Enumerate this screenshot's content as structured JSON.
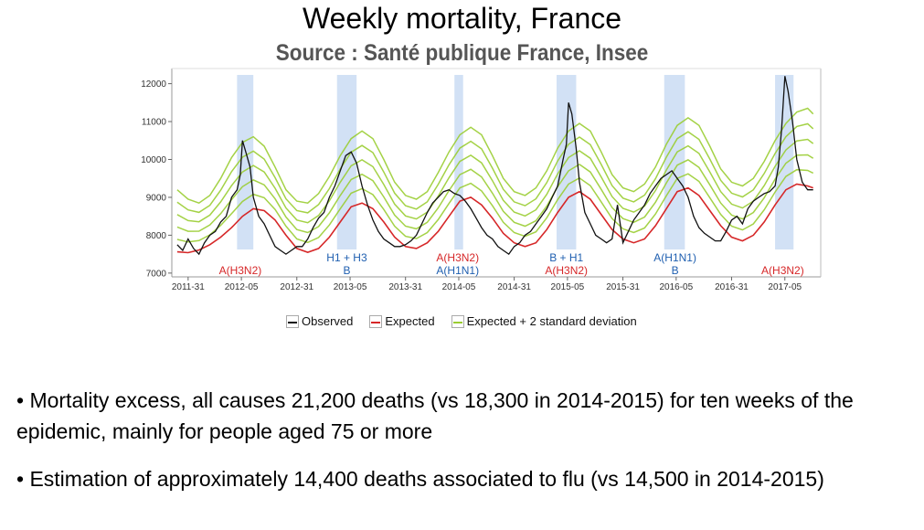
{
  "title": "Weekly mortality, France",
  "subtitle": "Source : Santé publique France, Insee",
  "chart_data": {
    "type": "line",
    "ylim": [
      6900,
      12400
    ],
    "yticks": [
      7000,
      8000,
      9000,
      10000,
      11000,
      12000
    ],
    "ytick_labels": [
      "7000",
      "8000",
      "9000",
      "10000",
      "11000",
      "12000"
    ],
    "xlim": [
      2011.45,
      2017.42
    ],
    "xticks": [
      2011.6,
      2012.09,
      2012.6,
      2013.09,
      2013.6,
      2014.09,
      2014.6,
      2015.09,
      2015.6,
      2016.09,
      2016.6,
      2017.09
    ],
    "xtick_labels": [
      "2011-31",
      "2012-05",
      "2012-31",
      "2013-05",
      "2013-31",
      "2014-05",
      "2014-31",
      "2015-05",
      "2015-31",
      "2016-05",
      "2016-31",
      "2017-05"
    ],
    "grid": false,
    "legend_position": "bottom",
    "series": [
      {
        "name": "Observed",
        "color": "#111111",
        "x": [
          2011.5,
          2011.55,
          2011.6,
          2011.65,
          2011.7,
          2011.75,
          2011.8,
          2011.85,
          2011.9,
          2011.95,
          2012.0,
          2012.05,
          2012.08,
          2012.1,
          2012.13,
          2012.17,
          2012.2,
          2012.25,
          2012.3,
          2012.35,
          2012.4,
          2012.45,
          2012.5,
          2012.55,
          2012.6,
          2012.65,
          2012.7,
          2012.75,
          2012.8,
          2012.85,
          2012.9,
          2012.95,
          2013.0,
          2013.05,
          2013.1,
          2013.15,
          2013.2,
          2013.25,
          2013.3,
          2013.35,
          2013.4,
          2013.45,
          2013.5,
          2013.55,
          2013.6,
          2013.65,
          2013.7,
          2013.75,
          2013.8,
          2013.85,
          2013.9,
          2013.95,
          2014.0,
          2014.05,
          2014.1,
          2014.15,
          2014.2,
          2014.25,
          2014.3,
          2014.35,
          2014.4,
          2014.45,
          2014.5,
          2014.55,
          2014.6,
          2014.65,
          2014.7,
          2014.75,
          2014.8,
          2014.85,
          2014.9,
          2014.95,
          2015.0,
          2015.05,
          2015.08,
          2015.1,
          2015.13,
          2015.17,
          2015.2,
          2015.25,
          2015.3,
          2015.35,
          2015.4,
          2015.45,
          2015.5,
          2015.55,
          2015.6,
          2015.65,
          2015.7,
          2015.75,
          2015.8,
          2015.85,
          2015.9,
          2015.95,
          2016.0,
          2016.05,
          2016.1,
          2016.15,
          2016.2,
          2016.25,
          2016.3,
          2016.35,
          2016.4,
          2016.45,
          2016.5,
          2016.55,
          2016.6,
          2016.65,
          2016.7,
          2016.75,
          2016.8,
          2016.85,
          2016.9,
          2016.95,
          2017.0,
          2017.03,
          2017.06,
          2017.09,
          2017.12,
          2017.16,
          2017.2,
          2017.25,
          2017.3,
          2017.35
        ],
        "values": [
          7750,
          7600,
          7900,
          7650,
          7500,
          7800,
          8000,
          8100,
          8350,
          8500,
          9000,
          9200,
          9600,
          10500,
          10200,
          9800,
          9000,
          8500,
          8300,
          8000,
          7700,
          7600,
          7500,
          7600,
          7700,
          7700,
          7900,
          8200,
          8450,
          8600,
          9000,
          9300,
          9700,
          10100,
          10200,
          9900,
          9300,
          8800,
          8400,
          8100,
          7900,
          7800,
          7700,
          7700,
          7750,
          7850,
          8000,
          8300,
          8600,
          8850,
          9000,
          9150,
          9200,
          9100,
          9050,
          8900,
          8700,
          8450,
          8200,
          8000,
          7900,
          7700,
          7600,
          7500,
          7700,
          7800,
          8000,
          8100,
          8300,
          8500,
          8700,
          9000,
          9300,
          10000,
          10400,
          11500,
          11200,
          10300,
          9400,
          8600,
          8300,
          8000,
          7900,
          7800,
          7900,
          8800,
          7800,
          8100,
          8400,
          8600,
          8800,
          9100,
          9300,
          9500,
          9600,
          9700,
          9500,
          9300,
          9000,
          8500,
          8200,
          8050,
          7950,
          7850,
          7850,
          8100,
          8400,
          8500,
          8300,
          8700,
          8900,
          9000,
          9100,
          9150,
          9300,
          9800,
          10800,
          12200,
          11800,
          11000,
          10000,
          9400,
          9200,
          9200
        ]
      },
      {
        "name": "Expected",
        "color": "#d62728",
        "x": [
          2011.5,
          2011.6,
          2011.7,
          2011.8,
          2011.9,
          2012.0,
          2012.1,
          2012.2,
          2012.3,
          2012.4,
          2012.5,
          2012.6,
          2012.7,
          2012.8,
          2012.9,
          2013.0,
          2013.1,
          2013.2,
          2013.3,
          2013.4,
          2013.5,
          2013.6,
          2013.7,
          2013.8,
          2013.9,
          2014.0,
          2014.1,
          2014.2,
          2014.3,
          2014.4,
          2014.5,
          2014.6,
          2014.7,
          2014.8,
          2014.9,
          2015.0,
          2015.1,
          2015.2,
          2015.3,
          2015.4,
          2015.5,
          2015.6,
          2015.7,
          2015.8,
          2015.9,
          2016.0,
          2016.1,
          2016.2,
          2016.3,
          2016.4,
          2016.5,
          2016.6,
          2016.7,
          2016.8,
          2016.9,
          2017.0,
          2017.1,
          2017.2,
          2017.3,
          2017.35
        ],
        "values": [
          7560,
          7540,
          7610,
          7750,
          7950,
          8200,
          8500,
          8700,
          8650,
          8400,
          8000,
          7650,
          7550,
          7650,
          7950,
          8350,
          8750,
          8850,
          8700,
          8350,
          7950,
          7700,
          7650,
          7800,
          8100,
          8500,
          8900,
          9000,
          8800,
          8450,
          8050,
          7800,
          7700,
          7800,
          8150,
          8600,
          9000,
          9150,
          8950,
          8550,
          8150,
          7900,
          7800,
          7900,
          8250,
          8700,
          9150,
          9250,
          9050,
          8650,
          8250,
          7950,
          7850,
          8000,
          8350,
          8800,
          9200,
          9350,
          9300,
          9250
        ]
      },
      {
        "name": "Expected + 2 standard deviation",
        "color": "#9acd32",
        "x": [
          2011.5,
          2011.6,
          2011.7,
          2011.8,
          2011.9,
          2012.0,
          2012.1,
          2012.2,
          2012.3,
          2012.4,
          2012.5,
          2012.6,
          2012.7,
          2012.8,
          2012.9,
          2013.0,
          2013.1,
          2013.2,
          2013.3,
          2013.4,
          2013.5,
          2013.6,
          2013.7,
          2013.8,
          2013.9,
          2014.0,
          2014.1,
          2014.2,
          2014.3,
          2014.4,
          2014.5,
          2014.6,
          2014.7,
          2014.8,
          2014.9,
          2015.0,
          2015.1,
          2015.2,
          2015.3,
          2015.4,
          2015.5,
          2015.6,
          2015.7,
          2015.8,
          2015.9,
          2016.0,
          2016.1,
          2016.2,
          2016.3,
          2016.4,
          2016.5,
          2016.6,
          2016.7,
          2016.8,
          2016.9,
          2017.0,
          2017.1,
          2017.2,
          2017.3,
          2017.35
        ],
        "values": [
          9200,
          8950,
          8850,
          9050,
          9500,
          10050,
          10450,
          10600,
          10350,
          9800,
          9200,
          8900,
          8850,
          9100,
          9550,
          10100,
          10550,
          10750,
          10550,
          10000,
          9400,
          9050,
          8950,
          9150,
          9650,
          10200,
          10650,
          10850,
          10650,
          10100,
          9500,
          9150,
          9050,
          9250,
          9700,
          10300,
          10750,
          10950,
          10750,
          10200,
          9600,
          9250,
          9150,
          9350,
          9800,
          10400,
          10900,
          11100,
          10900,
          10350,
          9750,
          9400,
          9300,
          9500,
          9950,
          10500,
          10950,
          11250,
          11350,
          11200
        ]
      }
    ],
    "epidemic_periods": [
      [
        2012.05,
        2012.2
      ],
      [
        2012.97,
        2013.15
      ],
      [
        2014.05,
        2014.13
      ],
      [
        2014.99,
        2015.17
      ],
      [
        2015.98,
        2016.17
      ],
      [
        2017.0,
        2017.17
      ]
    ],
    "annotations": [
      {
        "lines": [
          "A(H3N2)"
        ],
        "colors": [
          "#d62728"
        ],
        "x": 2012.08
      },
      {
        "lines": [
          "H1 + H3",
          "B"
        ],
        "colors": [
          "#1f5fb0",
          "#1f5fb0"
        ],
        "x": 2013.06
      },
      {
        "lines": [
          "A(H3N2)",
          "A(H1N1)"
        ],
        "colors": [
          "#d62728",
          "#1f5fb0"
        ],
        "x": 2014.08
      },
      {
        "lines": [
          "B + H1",
          "A(H3N2)"
        ],
        "colors": [
          "#1f5fb0",
          "#d62728"
        ],
        "x": 2015.08
      },
      {
        "lines": [
          "A(H1N1)",
          "B"
        ],
        "colors": [
          "#1f5fb0",
          "#1f5fb0"
        ],
        "x": 2016.08
      },
      {
        "lines": [
          "A(H3N2)"
        ],
        "colors": [
          "#d62728"
        ],
        "x": 2017.07
      }
    ]
  },
  "legend": [
    {
      "label": "Observed",
      "color": "#111111"
    },
    {
      "label": "Expected",
      "color": "#d62728"
    },
    {
      "label": "Expected + 2 standard deviation",
      "color": "#9acd32"
    }
  ],
  "bullets": [
    "• Mortality excess, all causes 21,200 deaths (vs 18,300 in 2014-2015) for ten weeks of the epidemic, mainly for people aged 75 or more",
    "• Estimation of approximately 14,400 deaths associated to flu (vs 14,500 in 2014-2015)"
  ]
}
